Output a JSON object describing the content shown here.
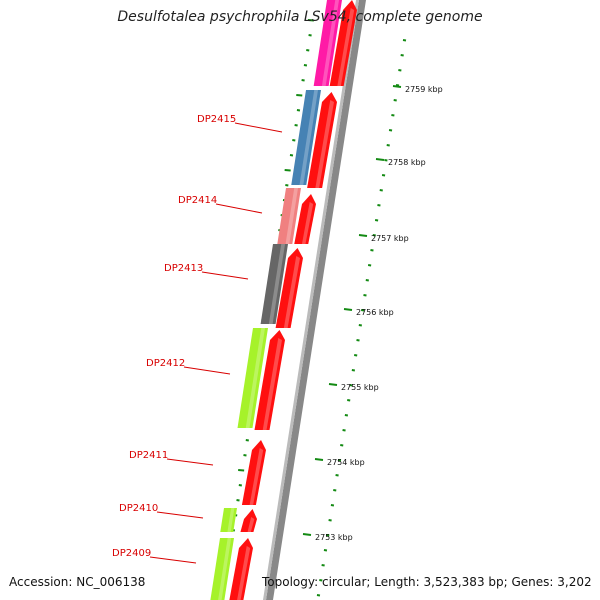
{
  "title": "Desulfotalea psychrophila LSv54, complete genome",
  "accession": "Accession: NC_006138",
  "topology": "Topology: circular; Length: 3,523,383 bp; Genes: 3,202",
  "colors": {
    "magenta": "#ff1aa6",
    "steelblue": "#4682b4",
    "salmon": "#f08080",
    "gray": "#666666",
    "lime": "#a6f22a",
    "red": "#ff1010",
    "tick_green": "#138a13",
    "label_red": "#d80000",
    "backbone": "#888888"
  },
  "gene_labels": [
    {
      "id": "DP2415",
      "text": "DP2415"
    },
    {
      "id": "DP2414",
      "text": "DP2414"
    },
    {
      "id": "DP2413",
      "text": "DP2413"
    },
    {
      "id": "DP2412",
      "text": "DP2412"
    },
    {
      "id": "DP2411",
      "text": "DP2411"
    },
    {
      "id": "DP2410",
      "text": "DP2410"
    },
    {
      "id": "DP2409",
      "text": "DP2409"
    }
  ],
  "kbp_labels": [
    "2759 kbp",
    "2758 kbp",
    "2757 kbp",
    "2756 kbp",
    "2755 kbp",
    "2754 kbp",
    "2753 kbp"
  ]
}
